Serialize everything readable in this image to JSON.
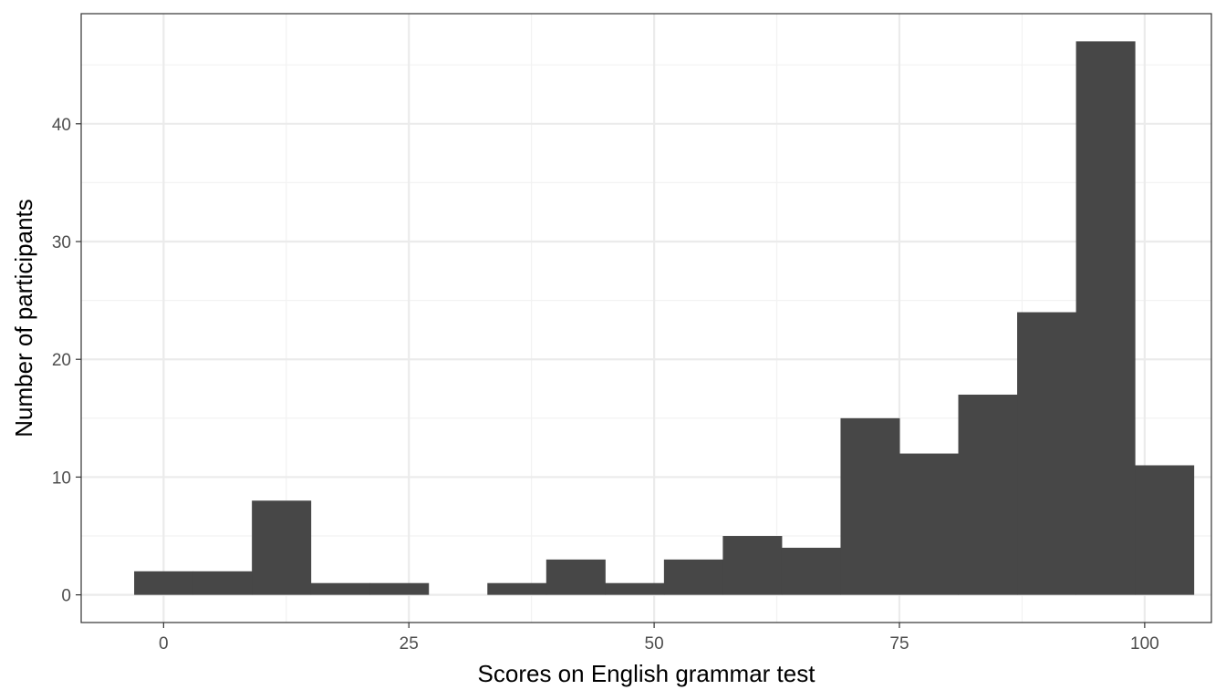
{
  "chart_data": {
    "type": "histogram",
    "title": "",
    "xlabel": "Scores on English grammar test",
    "ylabel": "Number of participants",
    "xlim": [
      -8.4,
      106.8
    ],
    "ylim": [
      -2.35,
      49.35
    ],
    "x_ticks": [
      0,
      25,
      50,
      75,
      100
    ],
    "y_ticks": [
      0,
      10,
      20,
      30,
      40
    ],
    "bin_width": 6,
    "bins": [
      {
        "x0": -3,
        "x1": 3,
        "count": 2
      },
      {
        "x0": 3,
        "x1": 9,
        "count": 2
      },
      {
        "x0": 9,
        "x1": 15,
        "count": 8
      },
      {
        "x0": 15,
        "x1": 21,
        "count": 1
      },
      {
        "x0": 21,
        "x1": 27,
        "count": 1
      },
      {
        "x0": 27,
        "x1": 33,
        "count": 0
      },
      {
        "x0": 33,
        "x1": 39,
        "count": 1
      },
      {
        "x0": 39,
        "x1": 45,
        "count": 3
      },
      {
        "x0": 45,
        "x1": 51,
        "count": 1
      },
      {
        "x0": 51,
        "x1": 57,
        "count": 3
      },
      {
        "x0": 57,
        "x1": 63,
        "count": 5
      },
      {
        "x0": 63,
        "x1": 69,
        "count": 4
      },
      {
        "x0": 69,
        "x1": 75,
        "count": 15
      },
      {
        "x0": 75,
        "x1": 81,
        "count": 12
      },
      {
        "x0": 81,
        "x1": 87,
        "count": 17
      },
      {
        "x0": 87,
        "x1": 93,
        "count": 24
      },
      {
        "x0": 93,
        "x1": 99,
        "count": 47
      },
      {
        "x0": 99,
        "x1": 105,
        "count": 11
      }
    ],
    "grid": true,
    "bar_color": "#474747",
    "panel_background": "#ffffff",
    "grid_major_color": "#ebebeb",
    "grid_minor_color": "#f2f2f2",
    "panel_border_color": "#333333"
  }
}
